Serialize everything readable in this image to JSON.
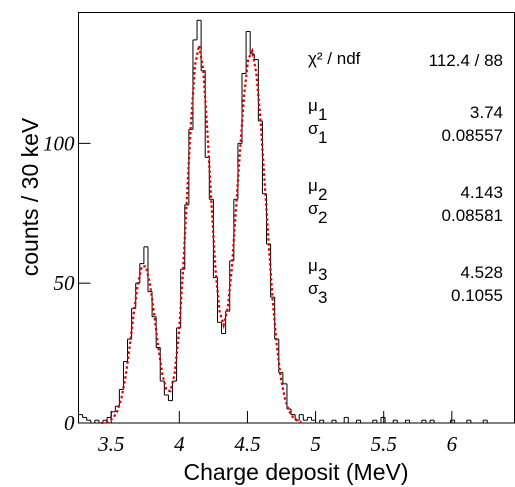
{
  "chart_data": {
    "type": "histogram",
    "xlabel": "Charge deposit (MeV)",
    "ylabel": "counts / 30 keV",
    "xlim": [
      3.26,
      6.46
    ],
    "ylim": [
      0,
      146.8
    ],
    "xticks": [
      3.5,
      4,
      4.5,
      5,
      5.5,
      6
    ],
    "yticks": [
      0,
      50,
      100
    ],
    "color": "#000000",
    "bins": [
      3.26,
      3.29,
      3.32,
      3.35,
      3.38,
      3.41,
      3.44,
      3.47,
      3.5,
      3.53,
      3.56,
      3.59,
      3.62,
      3.65,
      3.68,
      3.71,
      3.74,
      3.77,
      3.8,
      3.83,
      3.86,
      3.89,
      3.92,
      3.95,
      3.98,
      4.01,
      4.04,
      4.07,
      4.1,
      4.13,
      4.16,
      4.19,
      4.22,
      4.25,
      4.28,
      4.31,
      4.34,
      4.37,
      4.4,
      4.43,
      4.46,
      4.49,
      4.52,
      4.55,
      4.58,
      4.61,
      4.64,
      4.67,
      4.7,
      4.73,
      4.76,
      4.79,
      4.82,
      4.85,
      4.88,
      4.91,
      4.94,
      4.97,
      5.0,
      5.03,
      5.06,
      5.09,
      5.12,
      5.15,
      5.18,
      5.21,
      5.24,
      5.27,
      5.3,
      5.33,
      5.36,
      5.39,
      5.42,
      5.45,
      5.48,
      5.51,
      5.54,
      5.57,
      5.6,
      5.63,
      5.66,
      5.69,
      5.72,
      5.75,
      5.78,
      5.81,
      5.84,
      5.87,
      5.9,
      5.93,
      5.96,
      5.99,
      6.02,
      6.05,
      6.08,
      6.11,
      6.14,
      6.17,
      6.2,
      6.23,
      6.26,
      6.29,
      6.32,
      6.35,
      6.38,
      6.41,
      6.44
    ],
    "values": [
      3,
      2,
      1,
      0,
      1,
      0,
      1,
      2,
      4,
      6,
      12,
      22,
      30,
      41,
      50,
      57,
      63,
      47,
      38,
      27,
      15,
      10,
      8,
      15,
      34,
      55,
      78,
      105,
      137,
      144,
      126,
      95,
      80,
      52,
      36,
      32,
      40,
      58,
      80,
      100,
      125,
      140,
      132,
      130,
      108,
      82,
      64,
      45,
      30,
      18,
      14,
      5,
      3,
      1,
      3,
      1,
      2,
      1,
      0,
      1,
      0,
      0,
      1,
      0,
      0,
      2,
      0,
      0,
      1,
      0,
      0,
      0,
      1,
      0,
      2,
      0,
      0,
      1,
      0,
      0,
      1,
      0,
      0,
      0,
      1,
      0,
      1,
      0,
      0,
      0,
      0,
      1,
      0,
      0,
      0,
      1,
      0,
      0,
      0,
      1,
      0,
      0,
      0,
      0,
      0,
      0
    ],
    "fit": {
      "color": "#e00000",
      "x": [
        3.425,
        3.455,
        3.485,
        3.515,
        3.545,
        3.575,
        3.605,
        3.635,
        3.665,
        3.695,
        3.725,
        3.755,
        3.785,
        3.815,
        3.845,
        3.875,
        3.905,
        3.935,
        3.965,
        3.995,
        4.025,
        4.055,
        4.085,
        4.115,
        4.145,
        4.175,
        4.205,
        4.235,
        4.265,
        4.295,
        4.325,
        4.355,
        4.385,
        4.415,
        4.445,
        4.475,
        4.505,
        4.535,
        4.565,
        4.595,
        4.625,
        4.655,
        4.685,
        4.715,
        4.745,
        4.775,
        4.805,
        4.835,
        4.865,
        4.895
      ],
      "values": [
        0,
        0.2,
        0.7,
        1.8,
        4.2,
        8.9,
        16.5,
        27,
        39,
        49.6,
        56,
        56,
        49.6,
        39,
        27.3,
        17.5,
        11.8,
        11.4,
        17.5,
        31,
        52.5,
        80,
        107,
        128,
        135,
        126.5,
        105,
        79,
        55,
        40,
        35,
        41,
        55,
        76,
        97,
        117,
        130,
        133,
        125,
        109,
        87,
        65,
        44,
        28,
        16,
        8.7,
        4.3,
        2,
        0.9,
        0.4
      ]
    },
    "stats": {
      "chi2_label": "χ² / ndf",
      "chi2_value": "112.4 / 88",
      "params": [
        {
          "symbol": "μ",
          "index": "1",
          "value": 3.74
        },
        {
          "symbol": "σ",
          "index": "1",
          "value": 0.08557
        },
        {
          "symbol": "μ",
          "index": "2",
          "value": 4.143
        },
        {
          "symbol": "σ",
          "index": "2",
          "value": 0.08581
        },
        {
          "symbol": "μ",
          "index": "3",
          "value": 4.528
        },
        {
          "symbol": "σ",
          "index": "3",
          "value": 0.1055
        }
      ]
    }
  }
}
